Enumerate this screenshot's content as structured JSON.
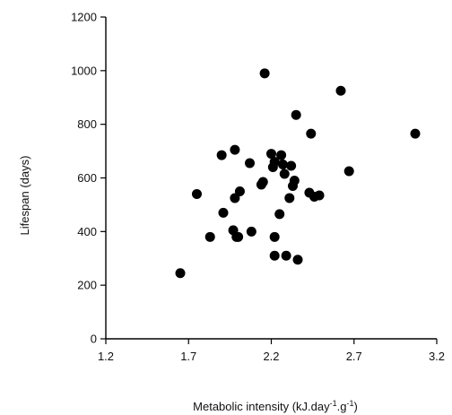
{
  "chart_data": {
    "type": "scatter",
    "title": "",
    "xlabel": "Metabolic intensity (kJ.day",
    "xlabel_sup1": "-1",
    "xlabel_mid": ".g",
    "xlabel_sup2": "-1",
    "xlabel_end": ")",
    "ylabel": "Lifespan (days)",
    "xlim": [
      1.2,
      3.2
    ],
    "ylim": [
      0,
      1200
    ],
    "xticks": [
      1.2,
      1.7,
      2.2,
      2.7,
      3.2
    ],
    "yticks": [
      0,
      200,
      400,
      600,
      800,
      1000,
      1200
    ],
    "xtick_labels": [
      "1.2",
      "1.7",
      "2.2",
      "2.7",
      "3.2"
    ],
    "ytick_labels": [
      "0",
      "200",
      "400",
      "600",
      "800",
      "1000",
      "1200"
    ],
    "grid": false,
    "legend": "none",
    "point_color": "#000000",
    "points": [
      {
        "x": 1.65,
        "y": 245
      },
      {
        "x": 1.75,
        "y": 540
      },
      {
        "x": 1.83,
        "y": 380
      },
      {
        "x": 1.9,
        "y": 685
      },
      {
        "x": 1.91,
        "y": 470
      },
      {
        "x": 1.97,
        "y": 405
      },
      {
        "x": 1.98,
        "y": 525
      },
      {
        "x": 1.98,
        "y": 705
      },
      {
        "x": 1.99,
        "y": 380
      },
      {
        "x": 2.0,
        "y": 380
      },
      {
        "x": 2.01,
        "y": 550
      },
      {
        "x": 2.07,
        "y": 655
      },
      {
        "x": 2.08,
        "y": 400
      },
      {
        "x": 2.14,
        "y": 575
      },
      {
        "x": 2.15,
        "y": 585
      },
      {
        "x": 2.16,
        "y": 990
      },
      {
        "x": 2.2,
        "y": 690
      },
      {
        "x": 2.21,
        "y": 640
      },
      {
        "x": 2.22,
        "y": 660
      },
      {
        "x": 2.22,
        "y": 380
      },
      {
        "x": 2.22,
        "y": 310
      },
      {
        "x": 2.25,
        "y": 465
      },
      {
        "x": 2.26,
        "y": 685
      },
      {
        "x": 2.27,
        "y": 650
      },
      {
        "x": 2.28,
        "y": 615
      },
      {
        "x": 2.29,
        "y": 310
      },
      {
        "x": 2.31,
        "y": 525
      },
      {
        "x": 2.32,
        "y": 645
      },
      {
        "x": 2.33,
        "y": 570
      },
      {
        "x": 2.34,
        "y": 590
      },
      {
        "x": 2.35,
        "y": 835
      },
      {
        "x": 2.36,
        "y": 295
      },
      {
        "x": 2.43,
        "y": 545
      },
      {
        "x": 2.44,
        "y": 765
      },
      {
        "x": 2.46,
        "y": 530
      },
      {
        "x": 2.49,
        "y": 535
      },
      {
        "x": 2.62,
        "y": 925
      },
      {
        "x": 2.67,
        "y": 625
      },
      {
        "x": 3.07,
        "y": 765
      }
    ]
  }
}
